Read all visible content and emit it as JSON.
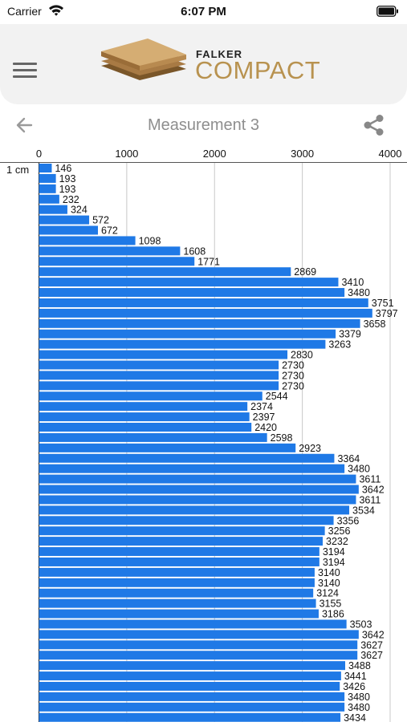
{
  "status": {
    "carrier": "Carrier",
    "time": "6:07 PM"
  },
  "brand": {
    "top": "FALKER",
    "main": "COMPACT"
  },
  "nav": {
    "title": "Measurement  3"
  },
  "icons": {
    "menu": "hamburger-menu-icon",
    "back": "arrow-left-icon",
    "share": "share-icon",
    "wifi": "wifi-icon",
    "battery": "battery-icon"
  },
  "colors": {
    "bar": "#1f79e6",
    "brand_gold": "#b8924f",
    "header_bg": "#f2f2f2"
  },
  "chart_data": {
    "type": "bar",
    "orientation": "horizontal",
    "xlim": [
      0,
      4000
    ],
    "ticks": [
      0,
      1000,
      2000,
      3000,
      4000
    ],
    "first_label": "1 cm",
    "grid": true,
    "values": [
      146,
      193,
      193,
      232,
      324,
      572,
      672,
      1098,
      1608,
      1771,
      2869,
      3410,
      3480,
      3751,
      3797,
      3658,
      3379,
      3263,
      2830,
      2730,
      2730,
      2730,
      2544,
      2374,
      2397,
      2420,
      2598,
      2923,
      3364,
      3480,
      3611,
      3642,
      3611,
      3534,
      3356,
      3256,
      3232,
      3194,
      3194,
      3140,
      3140,
      3124,
      3155,
      3186,
      3503,
      3642,
      3627,
      3627,
      3488,
      3441,
      3426,
      3480,
      3480,
      3434
    ]
  }
}
